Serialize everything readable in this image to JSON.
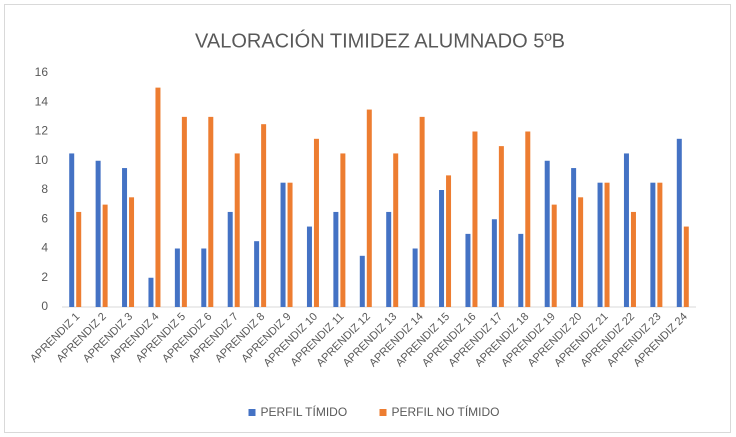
{
  "chart_data": {
    "type": "bar",
    "title": "VALORACIÓN TIMIDEZ ALUMNADO 5ºB",
    "categories": [
      "APRENDIZ 1",
      "APRENDIZ 2",
      "APRENDIZ 3",
      "APRENDIZ 4",
      "APRENDIZ 5",
      "APRENDIZ 6",
      "APRENDIZ 7",
      "APRENDIZ 8",
      "APRENDIZ 9",
      "APRENDIZ 10",
      "APRENDIZ 11",
      "APRENDIZ 12",
      "APRENDIZ 13",
      "APRENDIZ 14",
      "APRENDIZ 15",
      "APRENDIZ 16",
      "APRENDIZ 17",
      "APRENDIZ 18",
      "APRENDIZ 19",
      "APRENDIZ 20",
      "APRENDIZ 21",
      "APRENDIZ 22",
      "APRENDIZ 23",
      "APRENDIZ 24"
    ],
    "series": [
      {
        "name": "PERFIL TÍMIDO",
        "color": "#4472c4",
        "values": [
          10.5,
          10,
          9.5,
          2,
          4,
          4,
          6.5,
          4.5,
          8.5,
          5.5,
          6.5,
          3.5,
          6.5,
          4,
          8,
          5,
          6,
          5,
          10,
          9.5,
          8.5,
          10.5,
          8.5,
          11.5
        ]
      },
      {
        "name": "PERFIL NO TÍMIDO",
        "color": "#ed7d31",
        "values": [
          6.5,
          7,
          7.5,
          15,
          13,
          13,
          10.5,
          12.5,
          8.5,
          11.5,
          10.5,
          13.5,
          10.5,
          13,
          9,
          12,
          11,
          12,
          7,
          7.5,
          8.5,
          6.5,
          8.5,
          5.5
        ]
      }
    ],
    "ylim": [
      0,
      16
    ],
    "yticks": [
      0,
      2,
      4,
      6,
      8,
      10,
      12,
      14,
      16
    ],
    "grid": false,
    "legend": "bottom"
  }
}
